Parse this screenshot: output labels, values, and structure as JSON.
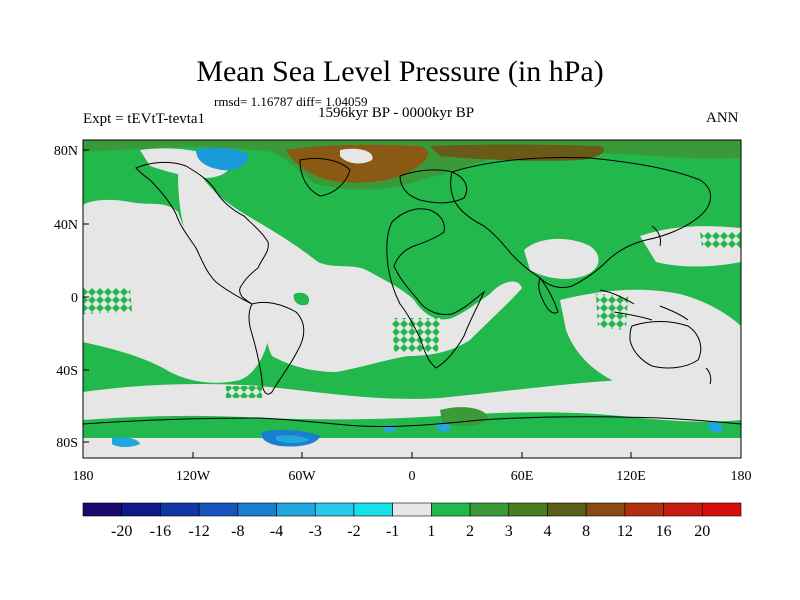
{
  "title": "Mean Sea Level Pressure (in hPa)",
  "stats": "rmsd= 1.16787 diff= 1.04059",
  "experiment": "Expt = tEVtT-tevta1",
  "period": "1596kyr BP - 0000kyr BP",
  "season": "ANN",
  "lat_ticks": [
    "80N",
    "40N",
    "0",
    "40S",
    "80S"
  ],
  "lon_ticks": [
    "180",
    "120W",
    "60W",
    "0",
    "60E",
    "120E",
    "180"
  ],
  "colorbar": {
    "labels": [
      "-20",
      "-16",
      "-12",
      "-8",
      "-4",
      "-3",
      "-2",
      "-1",
      "1",
      "2",
      "3",
      "4",
      "8",
      "12",
      "16",
      "20"
    ],
    "colors": [
      "#1a0a6e",
      "#0d1a8c",
      "#1136a6",
      "#1656be",
      "#1a7ed0",
      "#22a6de",
      "#2ac8e8",
      "#18e0e8",
      "#e6e6e6",
      "#22b84c",
      "#3a9a3a",
      "#4a7d22",
      "#5a6018",
      "#8a4a14",
      "#b03010",
      "#c81a10",
      "#d80e0e"
    ]
  },
  "map_colors": {
    "neutral": "#e6e6e6",
    "positive_1_2": "#22b84c",
    "positive_2_3": "#3a9a3a",
    "positive_3_4": "#4a7d22",
    "positive_4_8": "#8a5a14",
    "negative": "#1a9ad8",
    "coast": "#000000"
  }
}
